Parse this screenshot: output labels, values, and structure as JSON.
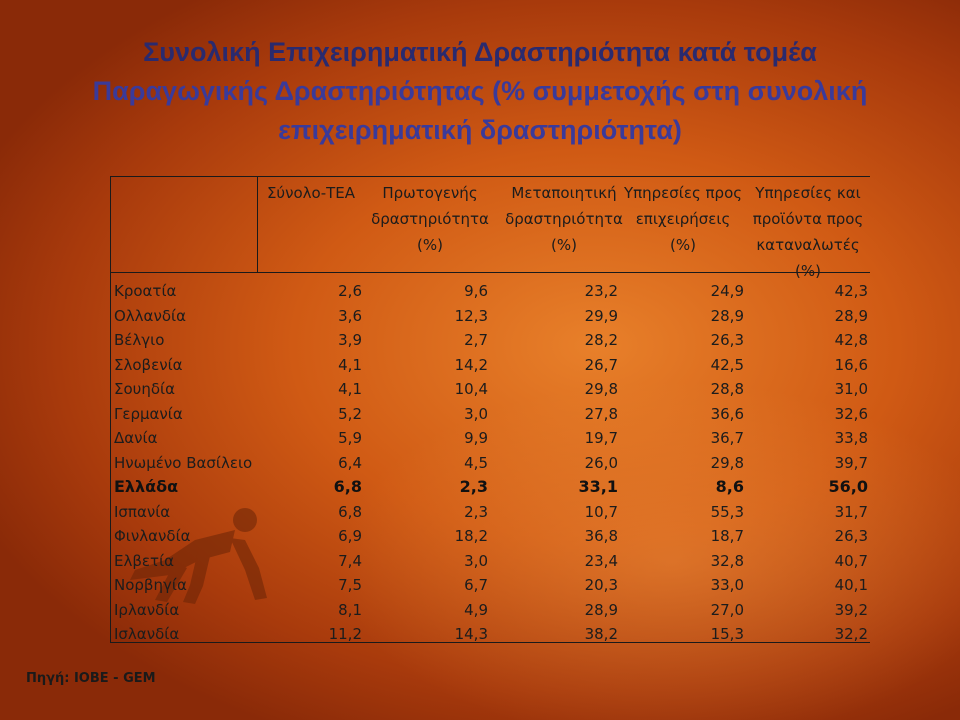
{
  "title": {
    "line1": "Συνολική Επιχειρηματική Δραστηριότητα κατά τομέα",
    "line2": "Παραγωγικής Δραστηριότητας (% συμμετοχής στη συνολική",
    "line3": "επιχειρηματική δραστηριότητα)"
  },
  "source": "Πηγή: ΙΟΒΕ - GEM",
  "chart_data": {
    "type": "table",
    "columns": [
      "Σύνολο-ΤΕΑ",
      "Πρωτογενής\nδραστηριότητα\n(%)",
      "Μεταποιητική\nδραστηριότητα\n(%)",
      "Υπηρεσίες προς\nεπιχειρήσεις\n(%)",
      "Υπηρεσίες και\nπροϊόντα προς\nκαταναλωτές\n(%)"
    ],
    "rows": [
      {
        "country": "Κροατία",
        "values": [
          "2,6",
          "9,6",
          "23,2",
          "24,9",
          "42,3"
        ],
        "bold": false
      },
      {
        "country": "Ολλανδία",
        "values": [
          "3,6",
          "12,3",
          "29,9",
          "28,9",
          "28,9"
        ],
        "bold": false
      },
      {
        "country": "Βέλγιο",
        "values": [
          "3,9",
          "2,7",
          "28,2",
          "26,3",
          "42,8"
        ],
        "bold": false
      },
      {
        "country": "Σλοβενία",
        "values": [
          "4,1",
          "14,2",
          "26,7",
          "42,5",
          "16,6"
        ],
        "bold": false
      },
      {
        "country": "Σουηδία",
        "values": [
          "4,1",
          "10,4",
          "29,8",
          "28,8",
          "31,0"
        ],
        "bold": false
      },
      {
        "country": "Γερμανία",
        "values": [
          "5,2",
          "3,0",
          "27,8",
          "36,6",
          "32,6"
        ],
        "bold": false
      },
      {
        "country": "Δανία",
        "values": [
          "5,9",
          "9,9",
          "19,7",
          "36,7",
          "33,8"
        ],
        "bold": false
      },
      {
        "country": "Ηνωμένο Βασίλειο",
        "values": [
          "6,4",
          "4,5",
          "26,0",
          "29,8",
          "39,7"
        ],
        "bold": false
      },
      {
        "country": "Ελλάδα",
        "values": [
          "6,8",
          "2,3",
          "33,1",
          "8,6",
          "56,0"
        ],
        "bold": true
      },
      {
        "country": "Ισπανία",
        "values": [
          "6,8",
          "2,3",
          "10,7",
          "55,3",
          "31,7"
        ],
        "bold": false
      },
      {
        "country": "Φινλανδία",
        "values": [
          "6,9",
          "18,2",
          "36,8",
          "18,7",
          "26,3"
        ],
        "bold": false
      },
      {
        "country": "Ελβετία",
        "values": [
          "7,4",
          "3,0",
          "23,4",
          "32,8",
          "40,7"
        ],
        "bold": false
      },
      {
        "country": "Νορβηγία",
        "values": [
          "7,5",
          "6,7",
          "20,3",
          "33,0",
          "40,1"
        ],
        "bold": false
      },
      {
        "country": "Ιρλανδία",
        "values": [
          "8,1",
          "4,9",
          "28,9",
          "27,0",
          "39,2"
        ],
        "bold": false
      },
      {
        "country": "Ισλανδία",
        "values": [
          "11,2",
          "14,3",
          "38,2",
          "15,3",
          "32,2"
        ],
        "bold": false
      }
    ]
  }
}
